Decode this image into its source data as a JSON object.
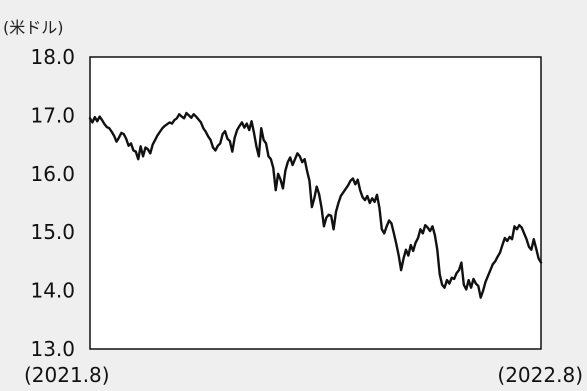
{
  "chart_data": {
    "type": "line",
    "unit_label": "(米ドル)",
    "x_start_label": "(2021.8)",
    "x_end_label": "(2022.8)",
    "y_ticks": [
      "18.0",
      "17.0",
      "16.0",
      "15.0",
      "14.0",
      "13.0"
    ],
    "ylim": [
      13.0,
      18.0
    ],
    "grid": false,
    "legend": "none",
    "line_color": "#111111",
    "series": [
      {
        "values": [
          16.95,
          16.88,
          16.97,
          16.9,
          16.98,
          16.92,
          16.85,
          16.8,
          16.78,
          16.72,
          16.65,
          16.55,
          16.62,
          16.7,
          16.68,
          16.6,
          16.48,
          16.52,
          16.4,
          16.38,
          16.25,
          16.47,
          16.3,
          16.45,
          16.42,
          16.35,
          16.5,
          16.58,
          16.66,
          16.72,
          16.78,
          16.82,
          16.85,
          16.88,
          16.86,
          16.92,
          16.95,
          17.02,
          16.98,
          16.95,
          17.04,
          17.0,
          16.96,
          17.02,
          16.98,
          16.93,
          16.88,
          16.78,
          16.72,
          16.64,
          16.58,
          16.45,
          16.4,
          16.48,
          16.52,
          16.68,
          16.73,
          16.6,
          16.56,
          16.38,
          16.62,
          16.75,
          16.82,
          16.88,
          16.79,
          16.86,
          16.75,
          16.9,
          16.7,
          16.47,
          16.3,
          16.78,
          16.58,
          16.52,
          16.3,
          16.25,
          16.1,
          15.72,
          16.0,
          15.9,
          15.75,
          16.05,
          16.2,
          16.28,
          16.15,
          16.25,
          16.35,
          16.3,
          16.2,
          16.25,
          16.05,
          15.88,
          15.43,
          15.58,
          15.78,
          15.65,
          15.42,
          15.1,
          15.25,
          15.3,
          15.28,
          15.05,
          15.35,
          15.5,
          15.62,
          15.68,
          15.74,
          15.8,
          15.88,
          15.92,
          15.82,
          15.9,
          15.72,
          15.6,
          15.55,
          15.62,
          15.5,
          15.58,
          15.52,
          15.64,
          15.42,
          15.05,
          14.98,
          15.1,
          15.2,
          15.15,
          14.98,
          14.8,
          14.6,
          14.35,
          14.55,
          14.7,
          14.6,
          14.78,
          14.68,
          14.82,
          14.9,
          15.05,
          14.98,
          15.12,
          15.08,
          15.02,
          15.1,
          14.95,
          14.7,
          14.28,
          14.1,
          14.05,
          14.18,
          14.12,
          14.22,
          14.2,
          14.3,
          14.35,
          14.48,
          14.1,
          14.02,
          14.18,
          14.05,
          14.2,
          14.12,
          14.08,
          13.88,
          14.0,
          14.15,
          14.25,
          14.35,
          14.45,
          14.5,
          14.58,
          14.65,
          14.78,
          14.9,
          14.85,
          14.92,
          14.88,
          15.1,
          15.05,
          15.12,
          15.08,
          14.98,
          14.88,
          14.75,
          14.7,
          14.88,
          14.72,
          14.55,
          14.48
        ]
      }
    ]
  }
}
